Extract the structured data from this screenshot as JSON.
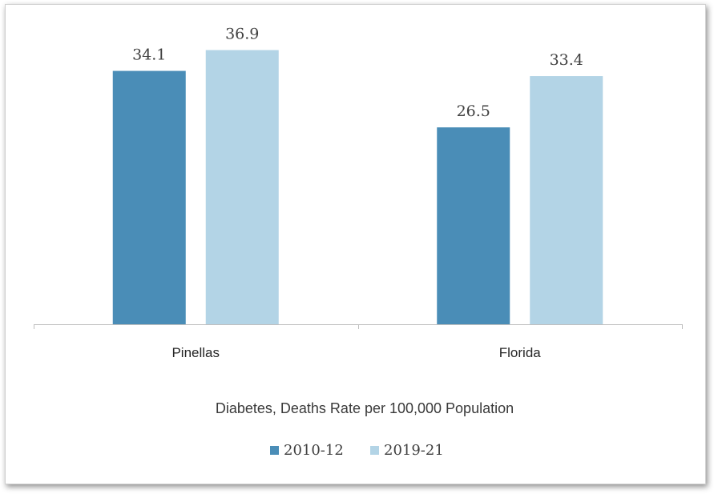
{
  "chart_data": {
    "type": "bar",
    "title": "",
    "xlabel": "Diabetes, Deaths Rate per 100,000 Population",
    "ylabel": "",
    "categories": [
      "Pinellas",
      "Florida"
    ],
    "series": [
      {
        "name": "2010-12",
        "values": [
          34.1,
          26.5
        ],
        "color": "#4a8db7"
      },
      {
        "name": "2019-21",
        "values": [
          36.9,
          33.4
        ],
        "color": "#b3d4e6"
      }
    ],
    "value_labels": [
      [
        "34.1",
        "26.5"
      ],
      [
        "36.9",
        "33.4"
      ]
    ],
    "ylim": [
      0,
      40
    ],
    "grid": false,
    "legend_position": "bottom"
  }
}
